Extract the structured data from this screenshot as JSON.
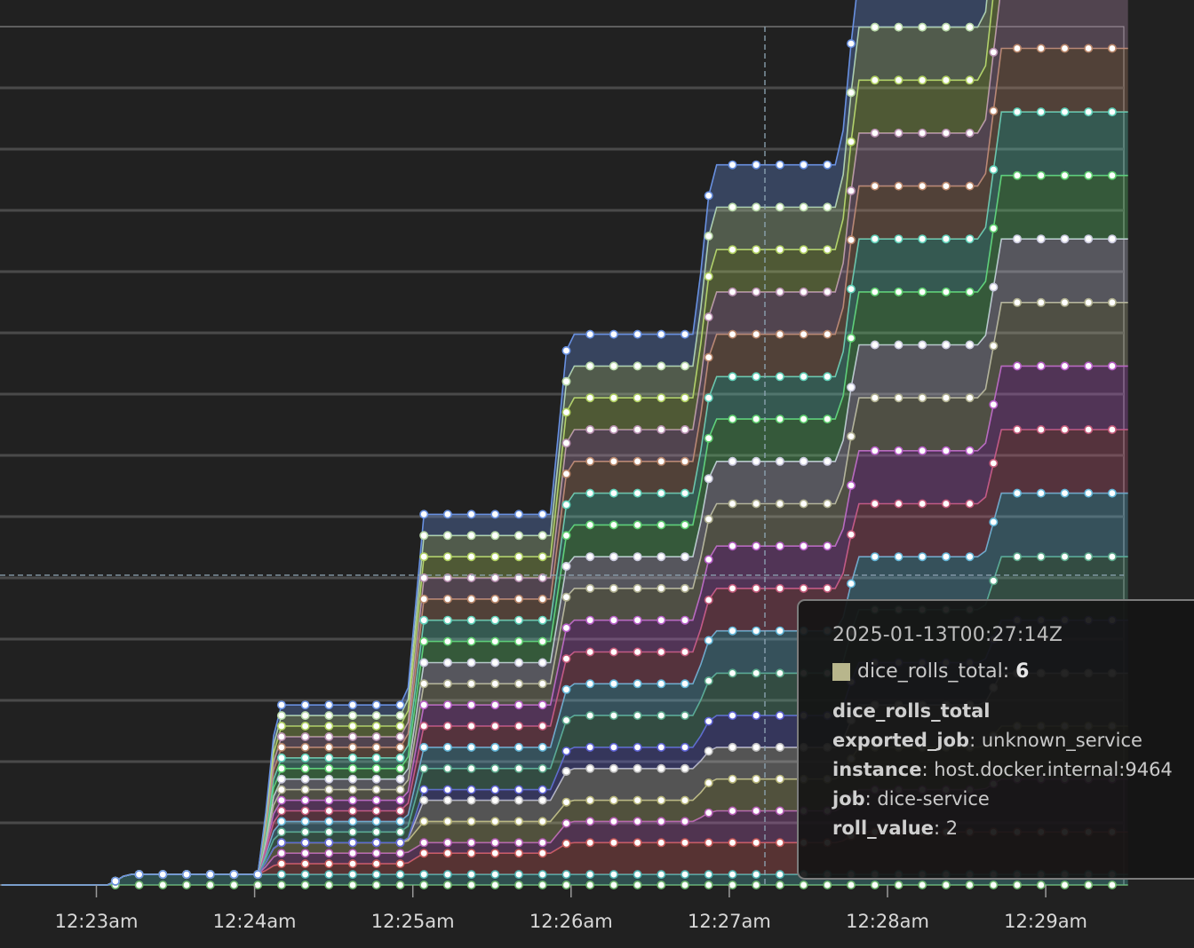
{
  "chart_data": {
    "type": "area",
    "stacked": true,
    "grid": true,
    "x_ticks": [
      "12:23am",
      "12:24am",
      "12:25am",
      "12:26am",
      "12:27am",
      "12:28am",
      "12:29am"
    ],
    "x_range": [
      "12:22:24am",
      "12:29:31am"
    ],
    "y_range": [
      0,
      70
    ],
    "series_colors": [
      "#6db36d",
      "#4fb2b0",
      "#c95b5b",
      "#b55db5",
      "#b8b67a",
      "#c0c0c0",
      "#5f63d6",
      "#5aa88a",
      "#63b6d8",
      "#c45a7a",
      "#b85ec8",
      "#b0b090",
      "#c8c8dc",
      "#5fcf6f",
      "#5fd0b8",
      "#b8866a",
      "#b890b0",
      "#b0d060",
      "#b8d8a8",
      "#6890e0"
    ],
    "x_minutes": [
      0.0,
      0.05,
      0.1,
      0.12,
      0.17,
      0.22,
      0.27,
      0.32,
      0.37,
      0.42,
      0.47,
      0.52,
      0.57,
      0.62,
      0.67,
      0.72,
      0.77,
      0.82,
      0.87,
      0.92,
      0.97,
      1.02,
      1.07,
      1.12,
      1.17,
      1.22,
      1.27,
      1.32,
      1.37,
      1.42,
      1.47,
      1.52,
      1.57,
      1.62,
      1.67,
      1.72,
      1.77,
      1.82,
      1.87,
      1.92,
      1.97,
      2.02,
      2.07,
      2.12,
      2.17,
      2.22,
      2.27,
      2.32,
      2.37,
      2.42,
      2.47,
      2.52,
      2.57,
      2.62,
      2.67,
      2.72,
      2.77,
      2.82,
      2.87,
      2.92,
      2.97,
      3.02,
      3.07,
      3.12,
      3.17,
      3.22,
      3.27,
      3.32,
      3.37,
      3.42,
      3.47,
      3.52,
      3.57,
      3.62,
      3.67,
      3.72,
      3.77,
      3.82,
      3.87,
      3.92,
      3.97,
      4.02,
      4.07,
      4.12,
      4.17,
      4.22,
      4.27,
      4.32,
      4.37,
      4.42,
      4.47,
      4.52,
      4.57,
      4.62,
      4.67,
      4.72,
      4.77,
      4.82,
      4.87,
      4.92,
      4.97,
      5.02,
      5.07,
      5.12,
      5.17,
      5.22,
      5.27,
      5.32,
      5.37,
      5.42,
      5.47,
      5.52,
      5.57,
      5.62,
      5.67,
      5.72,
      5.77,
      5.82,
      5.87,
      5.92,
      5.97,
      6.02,
      6.07,
      6.12,
      6.17,
      6.22,
      6.27,
      6.32,
      6.37,
      6.42,
      6.47,
      6.52,
      6.57,
      6.62,
      6.67,
      6.72,
      6.77,
      6.82,
      6.87,
      6.92,
      6.97,
      7.02,
      7.07,
      7.12
    ],
    "step_minutes": [
      0.68,
      1.63,
      2.56,
      3.47,
      4.38,
      5.3,
      6.21
    ],
    "series_values": [
      [
        0,
        0,
        0,
        0,
        0,
        0,
        0,
        0
      ],
      [
        0,
        1,
        1,
        1,
        1,
        1,
        1,
        1
      ],
      [
        0,
        0,
        1,
        2,
        3,
        3,
        4,
        4
      ],
      [
        0,
        0,
        1,
        1,
        2,
        3,
        4,
        5
      ],
      [
        0,
        0,
        1,
        2,
        2,
        3,
        4,
        5
      ],
      [
        0,
        0,
        0,
        2,
        3,
        3,
        4,
        5
      ],
      [
        0,
        0,
        0,
        1,
        2,
        3,
        4,
        5
      ],
      [
        0,
        0,
        1,
        2,
        3,
        4,
        5,
        6
      ],
      [
        0,
        0,
        1,
        2,
        3,
        4,
        5,
        6
      ],
      [
        0,
        0,
        1,
        2,
        3,
        4,
        5,
        6
      ],
      [
        0,
        0,
        1,
        2,
        3,
        4,
        5,
        6
      ],
      [
        0,
        0,
        1,
        2,
        3,
        4,
        5,
        6
      ],
      [
        0,
        0,
        1,
        2,
        3,
        4,
        5,
        6
      ],
      [
        0,
        0,
        1,
        2,
        3,
        4,
        5,
        6
      ],
      [
        0,
        0,
        1,
        2,
        3,
        4,
        5,
        6
      ],
      [
        0,
        0,
        1,
        2,
        3,
        4,
        5,
        6
      ],
      [
        0,
        0,
        1,
        2,
        3,
        4,
        5,
        6
      ],
      [
        0,
        0,
        1,
        2,
        3,
        4,
        5,
        6
      ],
      [
        0,
        0,
        1,
        2,
        3,
        4,
        5,
        6
      ],
      [
        0,
        0,
        1,
        2,
        3,
        4,
        5,
        6
      ]
    ]
  },
  "tooltip": {
    "time": "2025-01-13T00:27:14Z",
    "swatch_color": "#b8b68c",
    "series_name": "dice_rolls_total:",
    "value": "6",
    "metric": "dice_rolls_total",
    "labels": [
      {
        "key": "exported_job",
        "value": ": unknown_service"
      },
      {
        "key": "instance",
        "value": ": host.docker.internal:9464"
      },
      {
        "key": "job",
        "value": ": dice-service"
      },
      {
        "key": "roll_value",
        "value": ": 2"
      }
    ]
  }
}
